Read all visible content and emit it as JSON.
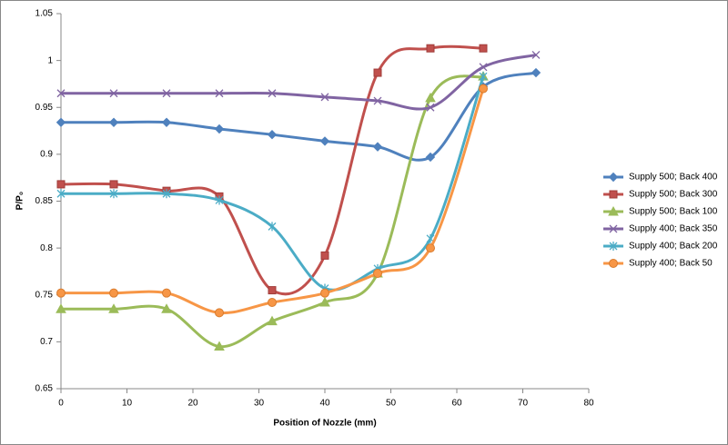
{
  "chart_data": {
    "type": "line",
    "x_label": "Position of Nozzle (mm)",
    "y_label": "P/P₀",
    "x": [
      0,
      8,
      16,
      24,
      32,
      40,
      48,
      56,
      64,
      72
    ],
    "series": [
      {
        "name": "Supply 500; Back 400",
        "color": "#4f81bd",
        "marker": "diamond",
        "values": [
          0.934,
          0.934,
          0.934,
          0.927,
          0.921,
          0.914,
          0.908,
          0.897,
          0.972,
          0.987
        ]
      },
      {
        "name": "Supply 500; Back 300",
        "color": "#c0504d",
        "marker": "square",
        "values": [
          0.868,
          0.868,
          0.861,
          0.855,
          0.755,
          0.792,
          0.987,
          1.013,
          1.013,
          null
        ]
      },
      {
        "name": "Supply 500; Back 100",
        "color": "#9bbb59",
        "marker": "triangle",
        "values": [
          0.735,
          0.735,
          0.735,
          0.695,
          0.722,
          0.742,
          0.773,
          0.96,
          0.983,
          null
        ]
      },
      {
        "name": "Supply 400; Back 350",
        "color": "#8064a2",
        "marker": "x",
        "values": [
          0.965,
          0.965,
          0.965,
          0.965,
          0.965,
          0.961,
          0.957,
          0.95,
          0.993,
          1.006
        ]
      },
      {
        "name": "Supply 400; Back 200",
        "color": "#4bacc6",
        "marker": "star",
        "values": [
          0.858,
          0.858,
          0.858,
          0.851,
          0.823,
          0.757,
          0.778,
          0.81,
          0.983,
          null
        ]
      },
      {
        "name": "Supply 400; Back 50",
        "color": "#f79646",
        "marker": "circle",
        "values": [
          0.752,
          0.752,
          0.752,
          0.731,
          0.742,
          0.752,
          0.773,
          0.8,
          0.97,
          null
        ]
      }
    ],
    "xlim": [
      0,
      80
    ],
    "xticks": [
      0,
      10,
      20,
      30,
      40,
      50,
      60,
      70,
      80
    ],
    "ylim": [
      0.65,
      1.05
    ],
    "yticks": [
      0.65,
      0.7,
      0.75,
      0.8,
      0.85,
      0.9,
      0.95,
      1,
      1.05
    ],
    "grid": false,
    "legend": "right"
  }
}
